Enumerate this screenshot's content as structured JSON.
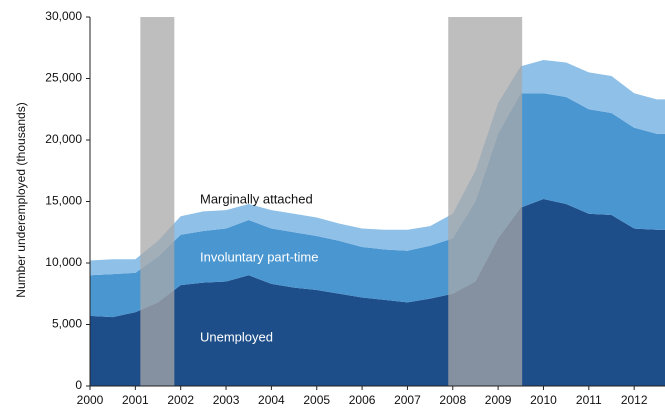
{
  "chart_data": {
    "type": "stacked_area",
    "y_label": "Number underemployed (thousands)",
    "x": [
      2000,
      2000.5,
      2001,
      2001.5,
      2002,
      2002.5,
      2003,
      2003.5,
      2004,
      2004.5,
      2005,
      2005.5,
      2006,
      2006.5,
      2007,
      2007.5,
      2008,
      2008.5,
      2009,
      2009.5,
      2010,
      2010.5,
      2011,
      2011.5,
      2012,
      2012.5,
      2012.68
    ],
    "series": [
      {
        "name": "Unemployed",
        "color": "#1d4e89",
        "values": [
          5700,
          5600,
          6000,
          6800,
          8200,
          8400,
          8500,
          9000,
          8300,
          8000,
          7800,
          7500,
          7200,
          7000,
          6800,
          7100,
          7500,
          8500,
          12000,
          14500,
          15200,
          14800,
          14000,
          13900,
          12800,
          12700,
          12700
        ]
      },
      {
        "name": "Involuntary part-time",
        "color": "#4a96d1",
        "values": [
          3300,
          3500,
          3200,
          3700,
          4100,
          4200,
          4300,
          4500,
          4500,
          4500,
          4400,
          4300,
          4100,
          4100,
          4200,
          4300,
          4500,
          6500,
          8500,
          9300,
          8600,
          8700,
          8500,
          8300,
          8200,
          7800,
          7800
        ]
      },
      {
        "name": "Marginally attached",
        "color": "#8fc0e8",
        "values": [
          1200,
          1200,
          1100,
          1300,
          1500,
          1600,
          1500,
          1300,
          1500,
          1500,
          1500,
          1400,
          1500,
          1600,
          1700,
          1600,
          2000,
          2500,
          2500,
          2200,
          2700,
          2800,
          3000,
          3000,
          2800,
          2800,
          2800
        ]
      }
    ],
    "recessions": [
      [
        2001.11,
        2001.86
      ],
      [
        2007.9,
        2009.53
      ]
    ],
    "recession_color": "#a8a8a8",
    "xlim": [
      2000,
      2012.68
    ],
    "xticks": [
      2000,
      2001,
      2002,
      2003,
      2004,
      2005,
      2006,
      2007,
      2008,
      2009,
      2010,
      2011,
      2012
    ],
    "ylim": [
      0,
      30000
    ],
    "yticks": [
      0,
      {
        "value": 5000,
        "label": "5,000"
      },
      {
        "value": 10000,
        "label": "10,000"
      },
      {
        "value": 15000,
        "label": "15,000"
      },
      {
        "value": 20000,
        "label": "20,000"
      },
      {
        "value": 25000,
        "label": "25,000"
      },
      {
        "value": 30000,
        "label": "30,000"
      }
    ]
  }
}
